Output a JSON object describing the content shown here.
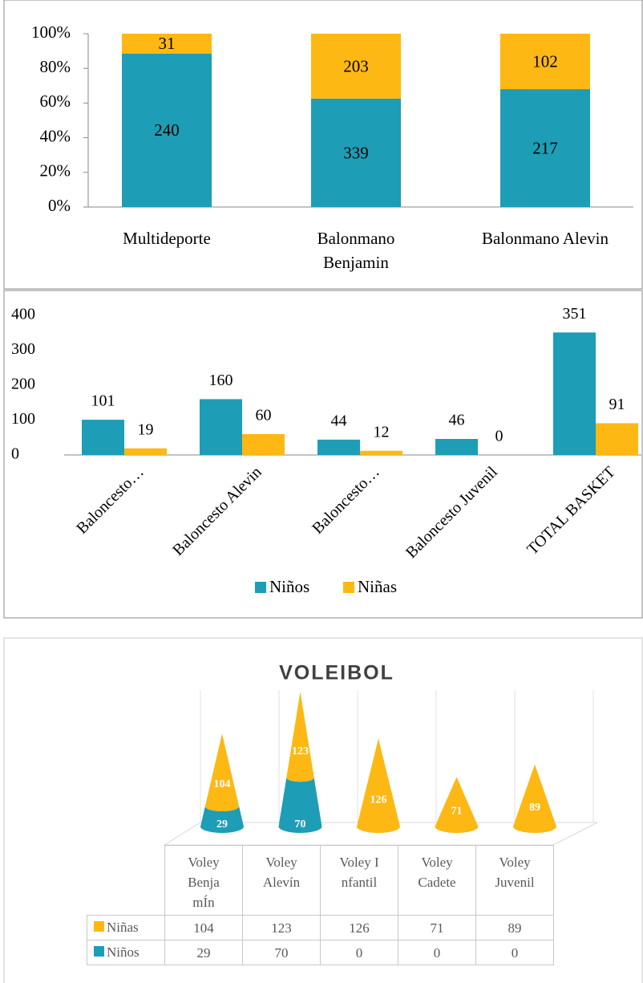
{
  "chart_data": [
    {
      "type": "bar",
      "stacking": "percent",
      "categories": [
        "Multideporte",
        "Balonmano Benjamin",
        "Balonmano Alevin"
      ],
      "series": [
        {
          "name": "Niños",
          "color": "#1e9db6",
          "values": [
            240,
            339,
            217
          ]
        },
        {
          "name": "Niñas",
          "color": "#fdb813",
          "values": [
            31,
            203,
            102
          ]
        }
      ],
      "ylim": [
        0,
        100
      ],
      "yticks": [
        {
          "value": 0,
          "label": "0%"
        },
        {
          "value": 20,
          "label": "20%"
        },
        {
          "value": 40,
          "label": "40%"
        },
        {
          "value": 60,
          "label": "60%"
        },
        {
          "value": 80,
          "label": "80%"
        },
        {
          "value": 100,
          "label": "100%"
        }
      ]
    },
    {
      "type": "bar",
      "legend": "bottom",
      "categories": [
        "Baloncesto…",
        "Baloncesto Alevin",
        "Baloncesto…",
        "Baloncesto Juvenil",
        "TOTAL BASKET"
      ],
      "series": [
        {
          "name": "Niños",
          "color": "#1e9db6",
          "values": [
            101,
            160,
            44,
            46,
            351
          ]
        },
        {
          "name": "Niñas",
          "color": "#fdb813",
          "values": [
            19,
            60,
            12,
            0,
            91
          ]
        }
      ],
      "ylim": [
        0,
        400
      ],
      "yticks": [
        0,
        100,
        200,
        300,
        400
      ]
    },
    {
      "type": "cone",
      "title": "VOLEIBOL",
      "categories": [
        "Voley BenjamÍn",
        "Voley Alevín",
        "Voley Infantil",
        "Voley Cadete",
        "Voley Juvenil"
      ],
      "series": [
        {
          "name": "Niñas",
          "color": "#fdb813",
          "values": [
            104,
            123,
            126,
            71,
            89
          ]
        },
        {
          "name": "Niños",
          "color": "#1e9db6",
          "values": [
            29,
            70,
            0,
            0,
            0
          ]
        }
      ]
    }
  ]
}
